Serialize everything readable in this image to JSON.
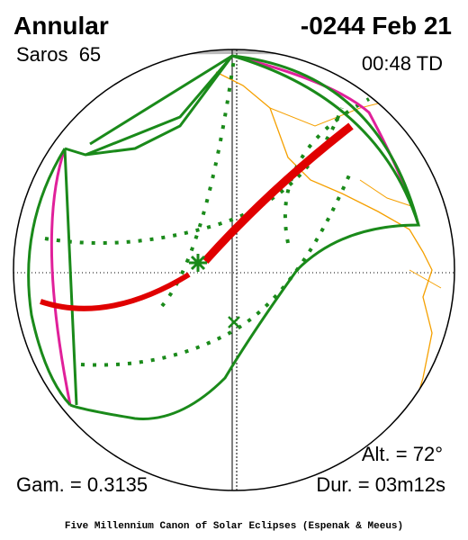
{
  "header": {
    "title": "Annular",
    "saros": "Saros  65",
    "date": "-0244 Feb 21",
    "time": "00:48 TD"
  },
  "stats": {
    "altitude": "Alt. = 72°",
    "gamma": "Gam. = 0.3135",
    "duration": "Dur. = 03m12s"
  },
  "footer": "Five Millennium Canon of Solar Eclipses (Espenak & Meeus)"
}
